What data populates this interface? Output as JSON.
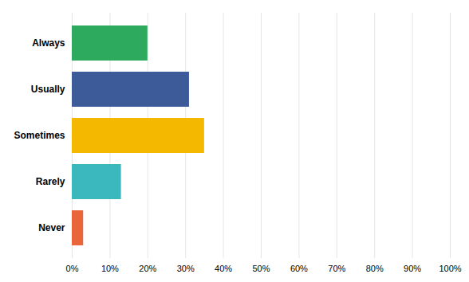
{
  "chart_data": {
    "type": "bar",
    "orientation": "horizontal",
    "categories": [
      "Always",
      "Usually",
      "Sometimes",
      "Rarely",
      "Never"
    ],
    "values": [
      20,
      31,
      35,
      13,
      3
    ],
    "colors": [
      "#2eaa5e",
      "#3d5a99",
      "#f5b800",
      "#3ab8be",
      "#e8663a"
    ],
    "xlim": [
      0,
      100
    ],
    "xticks": [
      {
        "value": 0,
        "label": "0%"
      },
      {
        "value": 10,
        "label": "10%"
      },
      {
        "value": 20,
        "label": "20%"
      },
      {
        "value": 30,
        "label": "30%"
      },
      {
        "value": 40,
        "label": "40%"
      },
      {
        "value": 50,
        "label": "50%"
      },
      {
        "value": 60,
        "label": "60%"
      },
      {
        "value": 70,
        "label": "70%"
      },
      {
        "value": 80,
        "label": "80%"
      },
      {
        "value": 90,
        "label": "90%"
      },
      {
        "value": 100,
        "label": "100%"
      }
    ],
    "grid": true
  }
}
